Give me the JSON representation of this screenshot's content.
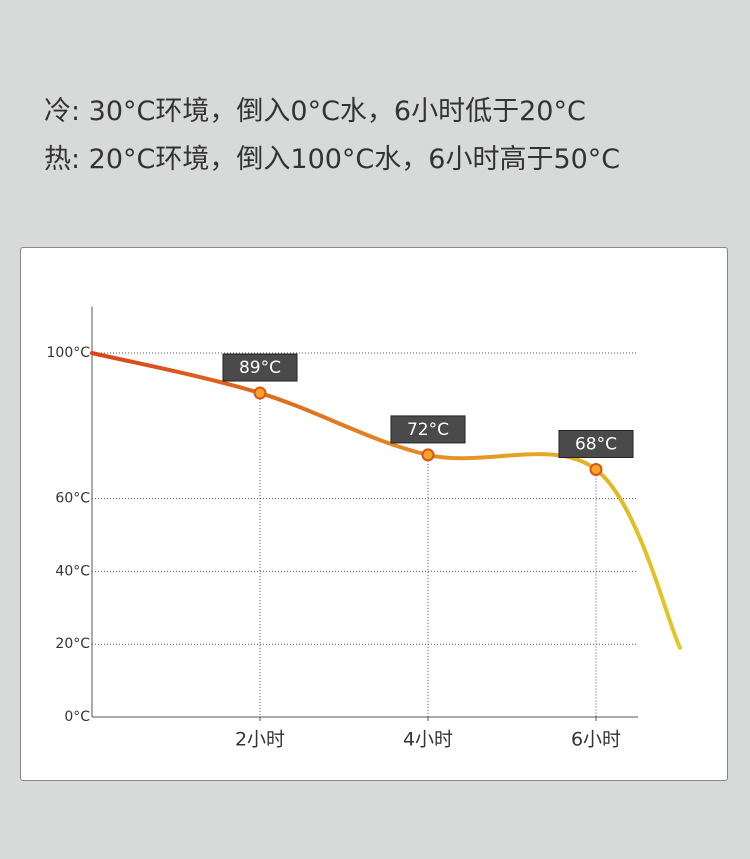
{
  "header": {
    "line1": "冷: 30°C环境，倒入0°C水，6小时低于20°C",
    "line2": "热: 20°C环境，倒入100°C水，6小时高于50°C"
  },
  "chart_data": {
    "type": "line",
    "x": [
      0,
      2,
      4,
      6,
      7
    ],
    "series": [
      {
        "values": [
          100,
          89,
          72,
          68,
          19
        ],
        "value_labels": [
          null,
          "89°C",
          "72°C",
          "68°C",
          null
        ],
        "color": "#d9451a"
      }
    ],
    "xlim": [
      0,
      6.5
    ],
    "xticks": [
      {
        "value": 2,
        "label": "2小时"
      },
      {
        "value": 4,
        "label": "4小时"
      },
      {
        "value": 6,
        "label": "6小时"
      }
    ],
    "ylim": [
      0,
      110
    ],
    "yticks": [
      {
        "value": 0,
        "label": "0°C"
      },
      {
        "value": 20,
        "label": "20°C"
      },
      {
        "value": 40,
        "label": "40°C"
      },
      {
        "value": 60,
        "label": "60°C"
      },
      {
        "value": 100,
        "label": "100°C"
      }
    ],
    "grid": true
  }
}
